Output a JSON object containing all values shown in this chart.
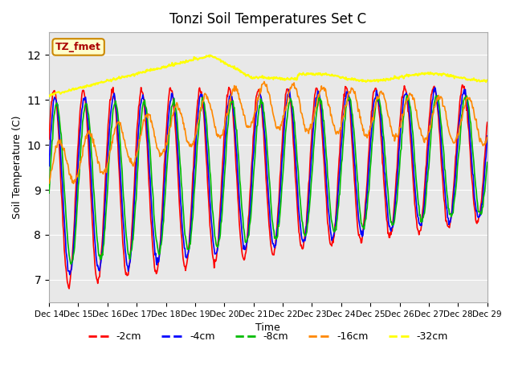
{
  "title": "Tonzi Soil Temperatures Set C",
  "xlabel": "Time",
  "ylabel": "Soil Temperature (C)",
  "ylim": [
    6.5,
    12.5
  ],
  "bg_color": "#e8e8e8",
  "annotation_text": "TZ_fmet",
  "annotation_bg": "#ffffcc",
  "annotation_border": "#cc8800",
  "annotation_text_color": "#aa0000",
  "series": {
    "-2cm": {
      "color": "#ff0000",
      "lw": 1.2
    },
    "-4cm": {
      "color": "#0000ff",
      "lw": 1.2
    },
    "-8cm": {
      "color": "#00bb00",
      "lw": 1.2
    },
    "-16cm": {
      "color": "#ff8800",
      "lw": 1.2
    },
    "-32cm": {
      "color": "#ffff00",
      "lw": 1.5
    }
  },
  "xtick_labels": [
    "Dec 14",
    "Dec 15",
    "Dec 16",
    "Dec 17",
    "Dec 18",
    "Dec 19",
    "Dec 20",
    "Dec 21",
    "Dec 22",
    "Dec 23",
    "Dec 24",
    "Dec 25",
    "Dec 26",
    "Dec 27",
    "Dec 28",
    "Dec 29"
  ],
  "n_points": 720
}
